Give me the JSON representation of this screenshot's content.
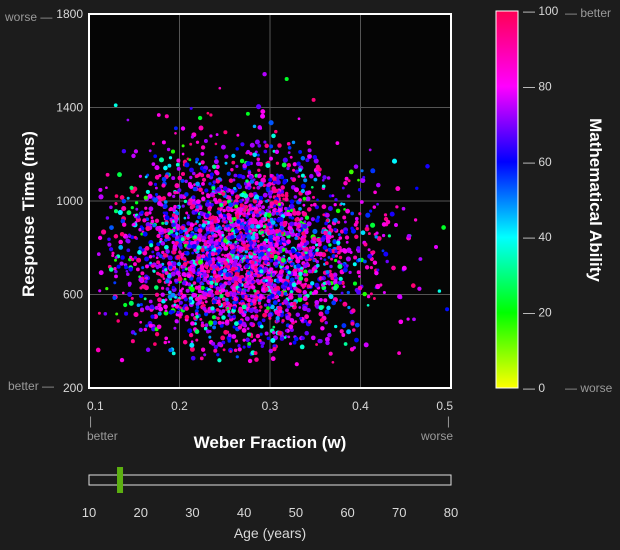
{
  "chart_data": {
    "type": "scatter",
    "x": {
      "label": "Weber Fraction (w)",
      "range": [
        0.1,
        0.5
      ],
      "ticks": [
        0.1,
        0.2,
        0.3,
        0.4,
        0.5
      ],
      "tick_labels": [
        "0.1",
        "0.2",
        "0.3",
        "0.4",
        "0.5"
      ],
      "low_hint": "better",
      "high_hint": "worse"
    },
    "y": {
      "label": "Response Time (ms)",
      "range": [
        200,
        1800
      ],
      "ticks": [
        200,
        600,
        1000,
        1400,
        1800
      ],
      "tick_labels": [
        "200",
        "600",
        "1000",
        "1400",
        "1800"
      ],
      "low_hint": "better —",
      "high_hint": "worse —"
    },
    "grid": true,
    "colorbar": {
      "label": "Mathematical Ability",
      "range": [
        0,
        100
      ],
      "ticks": [
        0,
        20,
        40,
        60,
        80,
        100
      ],
      "tick_labels": [
        "— 0",
        "— 20",
        "— 40",
        "— 60",
        "— 80",
        "— 100"
      ],
      "low_hint": "— worse",
      "high_hint": "— better",
      "colors": [
        "#ffff00",
        "#00ff00",
        "#00ffff",
        "#0000ff",
        "#ff00ff",
        "#ff0055"
      ]
    },
    "points": {
      "count": 3000,
      "w_mean": 0.26,
      "w_sd": 0.065,
      "rt_mean": 760,
      "rt_sd": 195,
      "ability_mode": 80
    },
    "age_slider": {
      "label": "Age (years)",
      "range": [
        10,
        80
      ],
      "ticks": [
        10,
        20,
        30,
        40,
        50,
        60,
        70,
        80
      ],
      "tick_labels": [
        "10",
        "20",
        "30",
        "40",
        "50",
        "60",
        "70",
        "80"
      ],
      "value": 16,
      "handle_color": "#5cb010"
    }
  }
}
